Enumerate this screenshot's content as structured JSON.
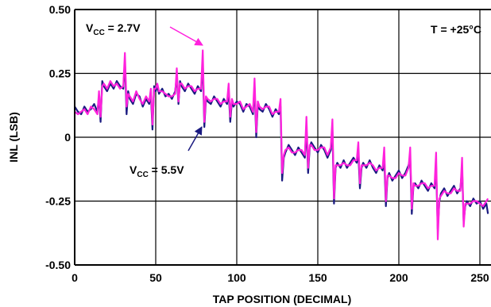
{
  "chart_data": {
    "type": "line",
    "title": "",
    "xlabel": "TAP POSITION (DECIMAL)",
    "ylabel": "INL (LSB)",
    "xlim": [
      0,
      255
    ],
    "ylim": [
      -0.5,
      0.5
    ],
    "grid": true,
    "x_ticks": [
      0,
      50,
      100,
      150,
      200,
      250
    ],
    "x_tick_labels": [
      "0",
      "50",
      "100",
      "150",
      "200",
      "250"
    ],
    "y_ticks": [
      0.5,
      0.25,
      0,
      -0.25,
      -0.5
    ],
    "y_tick_labels": [
      "0.50",
      "0.25",
      "0",
      "-0.25",
      "-0.50"
    ],
    "annotations": {
      "temperature": "T = +25°C",
      "vcc27": {
        "prefix": "V",
        "sub": "CC",
        "suffix": " = 2.7V"
      },
      "vcc55": {
        "prefix": "V",
        "sub": "CC",
        "suffix": " = 5.5V"
      }
    },
    "colors": {
      "vcc27": "#ff22dd",
      "vcc55": "#1a1a80"
    },
    "series": [
      {
        "color": "#1a1a80",
        "x": [
          0,
          2,
          4,
          6,
          8,
          10,
          12,
          14,
          15,
          16,
          17,
          18,
          20,
          22,
          24,
          26,
          28,
          30,
          31,
          32,
          33,
          34,
          36,
          38,
          40,
          42,
          44,
          46,
          47,
          48,
          49,
          50,
          51,
          52,
          54,
          56,
          58,
          60,
          62,
          63,
          64,
          65,
          66,
          68,
          70,
          72,
          74,
          76,
          78,
          79,
          80,
          81,
          82,
          84,
          86,
          88,
          90,
          92,
          94,
          95,
          96,
          97,
          98,
          100,
          102,
          104,
          106,
          108,
          110,
          111,
          112,
          113,
          114,
          116,
          118,
          120,
          122,
          124,
          126,
          127,
          128,
          129,
          130,
          132,
          134,
          136,
          138,
          140,
          142,
          143,
          144,
          145,
          146,
          148,
          150,
          152,
          154,
          156,
          158,
          159,
          160,
          161,
          162,
          164,
          166,
          168,
          170,
          172,
          174,
          175,
          176,
          177,
          178,
          180,
          182,
          184,
          186,
          188,
          190,
          191,
          192,
          193,
          194,
          196,
          198,
          200,
          202,
          204,
          206,
          207,
          208,
          209,
          210,
          212,
          214,
          216,
          218,
          220,
          222,
          223,
          224,
          225,
          226,
          228,
          230,
          232,
          234,
          236,
          238,
          239,
          240,
          241,
          242,
          244,
          246,
          248,
          250,
          252,
          254,
          255
        ],
        "y": [
          0.12,
          0.1,
          0.09,
          0.12,
          0.1,
          0.11,
          0.13,
          0.1,
          0.16,
          0.06,
          0.22,
          0.2,
          0.18,
          0.21,
          0.19,
          0.22,
          0.2,
          0.19,
          0.3,
          0.09,
          0.18,
          0.15,
          0.13,
          0.17,
          0.16,
          0.12,
          0.15,
          0.13,
          0.17,
          0.03,
          0.2,
          0.18,
          0.2,
          0.17,
          0.19,
          0.16,
          0.17,
          0.15,
          0.18,
          0.24,
          0.13,
          0.22,
          0.2,
          0.18,
          0.21,
          0.19,
          0.17,
          0.2,
          0.18,
          0.3,
          0.04,
          0.15,
          0.14,
          0.13,
          0.16,
          0.14,
          0.12,
          0.15,
          0.13,
          0.18,
          0.06,
          0.14,
          0.12,
          0.14,
          0.13,
          0.1,
          0.13,
          0.12,
          0.09,
          0.2,
          0.0,
          0.13,
          0.11,
          0.1,
          0.13,
          0.11,
          0.08,
          0.11,
          0.09,
          0.12,
          -0.17,
          -0.08,
          -0.06,
          -0.03,
          -0.05,
          -0.07,
          -0.04,
          -0.06,
          -0.08,
          0.04,
          -0.14,
          -0.04,
          -0.02,
          -0.04,
          -0.06,
          -0.03,
          -0.05,
          -0.08,
          -0.05,
          0.03,
          -0.26,
          -0.12,
          -0.1,
          -0.12,
          -0.09,
          -0.12,
          -0.1,
          -0.08,
          -0.1,
          -0.06,
          -0.2,
          -0.12,
          -0.1,
          -0.12,
          -0.09,
          -0.12,
          -0.14,
          -0.11,
          -0.13,
          -0.08,
          -0.27,
          -0.16,
          -0.14,
          -0.17,
          -0.15,
          -0.13,
          -0.16,
          -0.14,
          -0.11,
          -0.08,
          -0.3,
          -0.19,
          -0.18,
          -0.2,
          -0.17,
          -0.19,
          -0.21,
          -0.18,
          -0.2,
          -0.11,
          -0.36,
          -0.25,
          -0.22,
          -0.2,
          -0.23,
          -0.21,
          -0.19,
          -0.22,
          -0.2,
          -0.12,
          -0.33,
          -0.27,
          -0.25,
          -0.27,
          -0.24,
          -0.26,
          -0.25,
          -0.28,
          -0.26,
          -0.3
        ]
      },
      {
        "color": "#ff22dd",
        "x": [
          0,
          2,
          4,
          6,
          8,
          10,
          12,
          14,
          15,
          16,
          17,
          18,
          20,
          22,
          24,
          26,
          28,
          30,
          31,
          32,
          33,
          34,
          36,
          38,
          40,
          42,
          44,
          46,
          47,
          48,
          49,
          50,
          51,
          52,
          54,
          56,
          58,
          60,
          62,
          63,
          64,
          65,
          66,
          68,
          70,
          72,
          74,
          76,
          78,
          79,
          80,
          81,
          82,
          84,
          86,
          88,
          90,
          92,
          94,
          95,
          96,
          97,
          98,
          100,
          102,
          104,
          106,
          108,
          110,
          111,
          112,
          113,
          114,
          116,
          118,
          120,
          122,
          124,
          126,
          127,
          128,
          129,
          130,
          132,
          134,
          136,
          138,
          140,
          142,
          143,
          144,
          145,
          146,
          148,
          150,
          152,
          154,
          156,
          158,
          159,
          160,
          161,
          162,
          164,
          166,
          168,
          170,
          172,
          174,
          175,
          176,
          177,
          178,
          180,
          182,
          184,
          186,
          188,
          190,
          191,
          192,
          193,
          194,
          196,
          198,
          200,
          202,
          204,
          206,
          207,
          208,
          209,
          210,
          212,
          214,
          216,
          218,
          220,
          222,
          223,
          224,
          225,
          226,
          228,
          230,
          232,
          234,
          236,
          238,
          239,
          240,
          241,
          242,
          244,
          246,
          248,
          250,
          252,
          254,
          255
        ],
        "y": [
          0.1,
          0.09,
          0.1,
          0.11,
          0.09,
          0.12,
          0.11,
          0.09,
          0.18,
          0.08,
          0.2,
          0.21,
          0.19,
          0.22,
          0.2,
          0.21,
          0.19,
          0.2,
          0.33,
          0.12,
          0.17,
          0.16,
          0.14,
          0.18,
          0.15,
          0.13,
          0.16,
          0.14,
          0.19,
          0.05,
          0.19,
          0.19,
          0.21,
          0.18,
          0.18,
          0.17,
          0.16,
          0.16,
          0.17,
          0.27,
          0.14,
          0.21,
          0.21,
          0.19,
          0.2,
          0.2,
          0.18,
          0.19,
          0.19,
          0.34,
          0.06,
          0.16,
          0.15,
          0.14,
          0.15,
          0.15,
          0.13,
          0.14,
          0.14,
          0.21,
          0.08,
          0.15,
          0.13,
          0.13,
          0.14,
          0.11,
          0.12,
          0.13,
          0.1,
          0.23,
          0.02,
          0.14,
          0.12,
          0.11,
          0.12,
          0.12,
          0.09,
          0.1,
          0.1,
          0.15,
          -0.14,
          -0.07,
          -0.05,
          -0.04,
          -0.06,
          -0.06,
          -0.05,
          -0.05,
          -0.07,
          0.08,
          -0.12,
          -0.03,
          -0.03,
          -0.05,
          -0.05,
          -0.04,
          -0.04,
          -0.07,
          -0.04,
          0.07,
          -0.24,
          -0.11,
          -0.11,
          -0.11,
          -0.1,
          -0.11,
          -0.11,
          -0.09,
          -0.09,
          -0.02,
          -0.18,
          -0.11,
          -0.11,
          -0.11,
          -0.1,
          -0.11,
          -0.13,
          -0.12,
          -0.12,
          -0.04,
          -0.25,
          -0.15,
          -0.15,
          -0.16,
          -0.16,
          -0.14,
          -0.15,
          -0.15,
          -0.12,
          -0.04,
          -0.28,
          -0.18,
          -0.19,
          -0.19,
          -0.18,
          -0.18,
          -0.2,
          -0.19,
          -0.19,
          -0.06,
          -0.4,
          -0.24,
          -0.23,
          -0.21,
          -0.22,
          -0.22,
          -0.2,
          -0.21,
          -0.21,
          -0.08,
          -0.35,
          -0.26,
          -0.26,
          -0.26,
          -0.25,
          -0.25,
          -0.26,
          -0.27,
          -0.25,
          -0.24
        ]
      }
    ]
  }
}
